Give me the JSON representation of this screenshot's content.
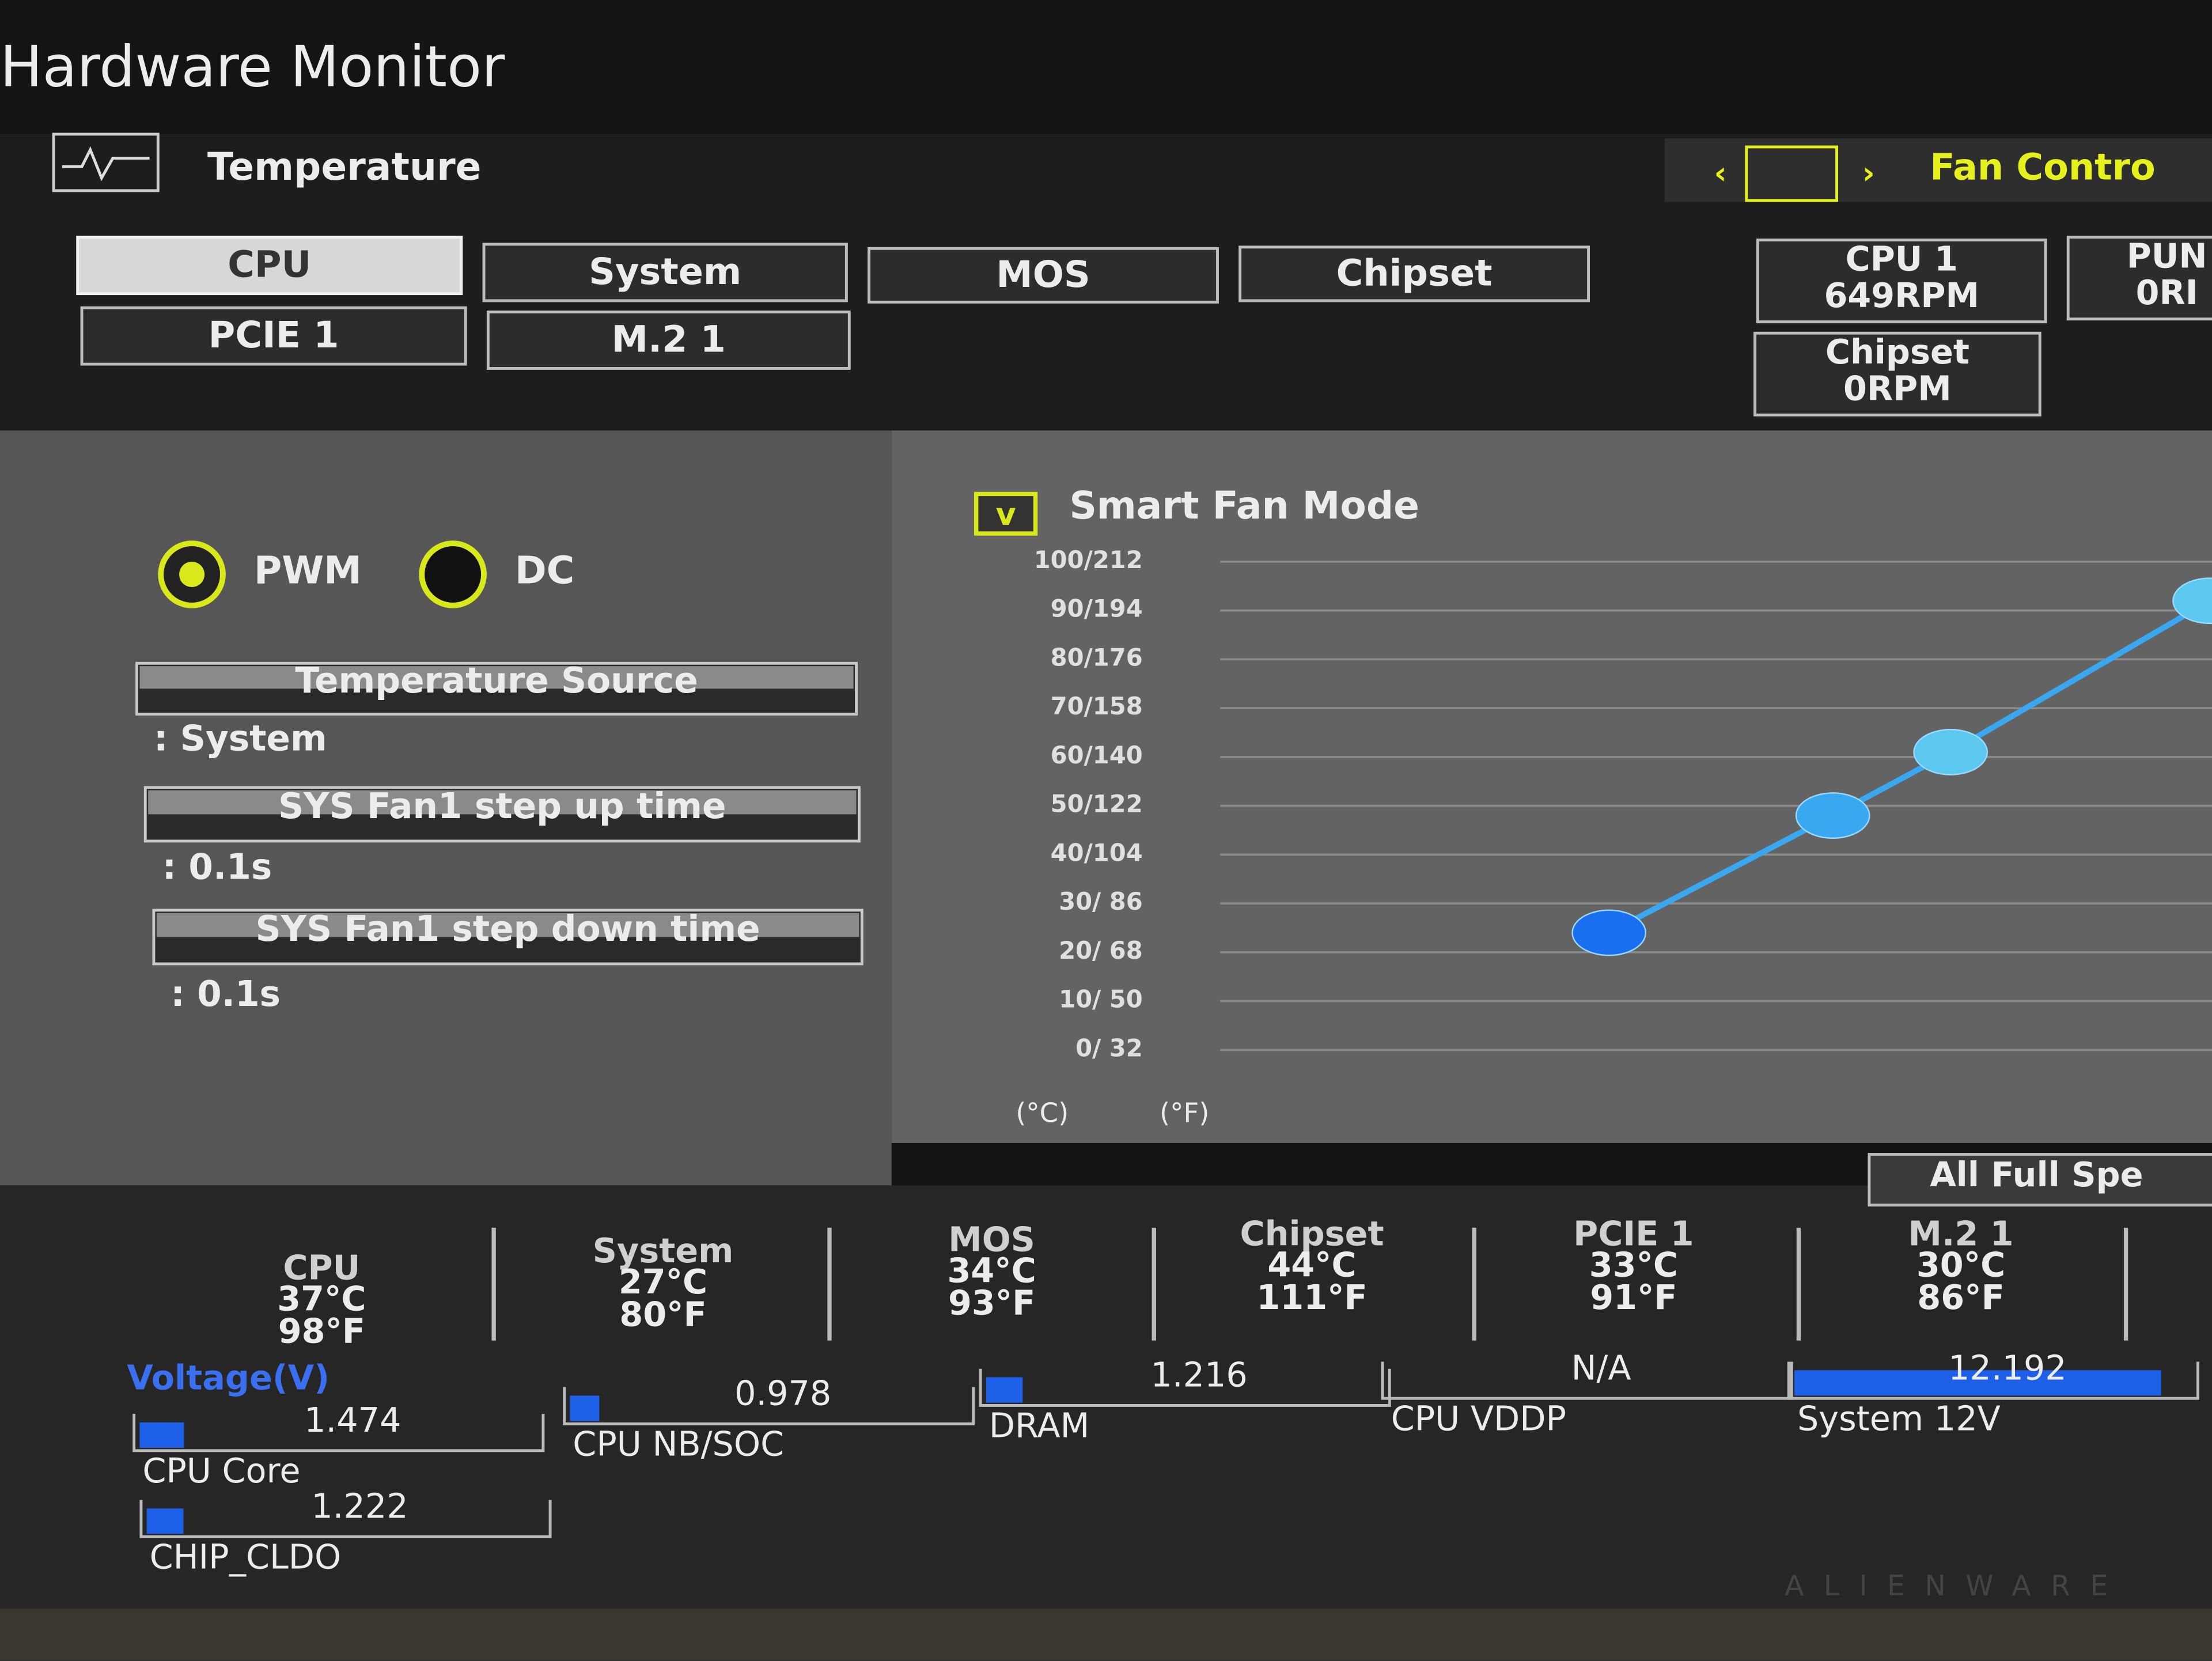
{
  "header": {
    "title": "Hardware Monitor"
  },
  "tabs": {
    "temperature": "Temperature",
    "fan_control": "Fan Contro"
  },
  "sources": [
    "CPU",
    "System",
    "MOS",
    "Chipset",
    "PCIE 1",
    "M.2 1"
  ],
  "fans": [
    {
      "name": "CPU 1",
      "speed": "649RPM"
    },
    {
      "name": "Chipset",
      "speed": "0RPM"
    },
    {
      "name": "PUN",
      "speed": "0RI"
    }
  ],
  "mode": {
    "pwm": "PWM",
    "dc": "DC"
  },
  "settings": [
    {
      "label": "Temperature Source",
      "value": ": System"
    },
    {
      "label": "SYS Fan1 step up time",
      "value": ": 0.1s"
    },
    {
      "label": "SYS Fan1 step down time",
      "value": ": 0.1s"
    }
  ],
  "fan_chart": {
    "title": "Smart Fan Mode",
    "xlim": [
      0,
      100
    ],
    "ylim": [
      0,
      100
    ],
    "yticks": [
      {
        "value": 100,
        "label": "100/212"
      },
      {
        "value": 90,
        "label": "90/194"
      },
      {
        "value": 80,
        "label": "80/176"
      },
      {
        "value": 70,
        "label": "70/158"
      },
      {
        "value": 60,
        "label": "60/140"
      },
      {
        "value": 50,
        "label": "50/122"
      },
      {
        "value": 40,
        "label": "40/104"
      },
      {
        "value": 30,
        "label": "30/  86"
      },
      {
        "value": 20,
        "label": "20/  68"
      },
      {
        "value": 10,
        "label": "10/  50"
      },
      {
        "value": 0,
        "label": "0/  32"
      }
    ],
    "points": [
      {
        "x": 33,
        "y": 24
      },
      {
        "x": 52,
        "y": 48
      },
      {
        "x": 62,
        "y": 61
      },
      {
        "x": 84,
        "y": 92
      }
    ],
    "unit_c": "(°C)",
    "unit_f": "(°F)"
  },
  "all_full_speed": "All Full Spe",
  "temperatures": [
    {
      "name": "CPU",
      "c": "37°C",
      "f": "98°F"
    },
    {
      "name": "System",
      "c": "27°C",
      "f": "80°F"
    },
    {
      "name": "MOS",
      "c": "34°C",
      "f": "93°F"
    },
    {
      "name": "Chipset",
      "c": "44°C",
      "f": "111°F"
    },
    {
      "name": "PCIE 1",
      "c": "33°C",
      "f": "91°F"
    },
    {
      "name": "M.2 1",
      "c": "30°C",
      "f": "86°F"
    }
  ],
  "voltage": {
    "title": "Voltage(V)",
    "items": [
      {
        "name": "CPU Core",
        "value": 1.474
      },
      {
        "name": "CPU NB/SOC",
        "value": 0.978
      },
      {
        "name": "DRAM",
        "value": 1.216
      },
      {
        "name": "CPU VDDP",
        "value": "N/A"
      },
      {
        "name": "System 12V",
        "value": 12.192
      },
      {
        "name": "CHIP_CLDO",
        "value": 1.222
      }
    ]
  },
  "monitor": {
    "brand": "ALIENWARE"
  }
}
